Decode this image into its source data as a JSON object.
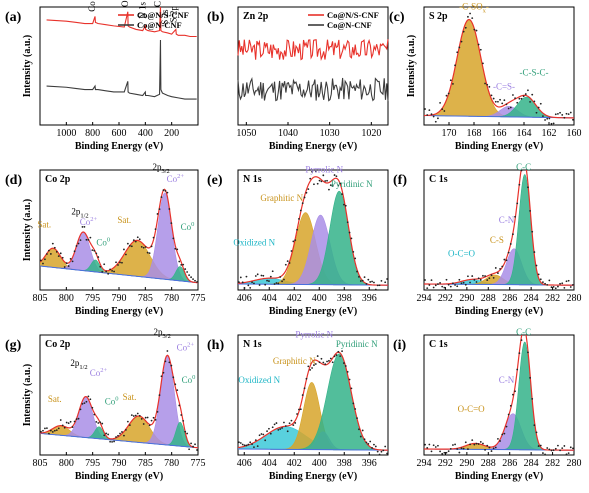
{
  "chart_data": [
    {
      "id": "a",
      "panel_label": "(a)",
      "title": "",
      "type": "line",
      "xrange": [
        1200,
        0
      ],
      "yrange": [
        0,
        1
      ],
      "xticks": [
        1000,
        800,
        600,
        400,
        200
      ],
      "xlabel": "Binding Energy (eV)",
      "ylabel": "Intensity (a.u.)",
      "legend": [
        "Co@N/S-CNF",
        "Co@N-CNF"
      ],
      "legend_position": "top-right",
      "series": [
        {
          "name": "Co@N/S-CNF",
          "color": "#e8322b",
          "x": [
            1150,
            1000,
            930,
            860,
            800,
            782,
            779,
            760,
            700,
            640,
            560,
            533,
            531,
            520,
            470,
            420,
            400,
            398,
            380,
            330,
            292,
            285,
            282,
            270,
            230,
            200,
            168,
            165,
            150,
            100,
            60,
            10
          ],
          "y": [
            0.89,
            0.88,
            0.87,
            0.86,
            0.86,
            0.92,
            0.87,
            0.86,
            0.85,
            0.84,
            0.83,
            0.96,
            0.84,
            0.83,
            0.81,
            0.8,
            0.84,
            0.81,
            0.8,
            0.79,
            0.8,
            1.0,
            0.8,
            0.79,
            0.78,
            0.77,
            0.81,
            0.77,
            0.76,
            0.76,
            0.75,
            0.75
          ]
        },
        {
          "name": "Co@N-CNF",
          "color": "#3c3c3c",
          "x": [
            1150,
            1000,
            930,
            860,
            800,
            782,
            779,
            760,
            700,
            640,
            560,
            533,
            531,
            520,
            470,
            420,
            400,
            398,
            380,
            330,
            292,
            285,
            282,
            270,
            230,
            200,
            150,
            100,
            60,
            10
          ],
          "y": [
            0.33,
            0.32,
            0.31,
            0.3,
            0.3,
            0.33,
            0.3,
            0.3,
            0.29,
            0.28,
            0.28,
            0.37,
            0.28,
            0.27,
            0.26,
            0.25,
            0.28,
            0.25,
            0.25,
            0.24,
            0.26,
            0.72,
            0.3,
            0.27,
            0.25,
            0.24,
            0.23,
            0.22,
            0.22,
            0.22
          ]
        }
      ],
      "annotations": [
        {
          "text": "Co 2p",
          "x": 782,
          "y": 0.96,
          "rot": -90
        },
        {
          "text": "O 1s",
          "x": 532,
          "y": 1.0,
          "rot": -90
        },
        {
          "text": "N 1s",
          "x": 400,
          "y": 0.9,
          "rot": -90
        },
        {
          "text": "C 1s",
          "x": 285,
          "y": 1.0,
          "rot": -90
        },
        {
          "text": "S 2s",
          "x": 228,
          "y": 0.85,
          "rot": -90
        },
        {
          "text": "S 2p",
          "x": 165,
          "y": 0.87,
          "rot": -90
        }
      ]
    },
    {
      "id": "b",
      "panel_label": "(b)",
      "title": "Zn 2p",
      "type": "line",
      "xrange": [
        1052,
        1016
      ],
      "yrange": [
        0,
        1
      ],
      "xticks": [
        1050,
        1040,
        1030,
        1020
      ],
      "xlabel": "Binding Energy (eV)",
      "ylabel": "",
      "legend": [
        "Co@N/S-CNF",
        "Co@N-CNF"
      ],
      "legend_position": "top-right",
      "series": [
        {
          "name": "Co@N/S-CNF",
          "color": "#e8322b",
          "noise": {
            "seed": 3,
            "base": 0.64,
            "amp": 0.09,
            "n": 120
          }
        },
        {
          "name": "Co@N-CNF",
          "color": "#3c3c3c",
          "noise": {
            "seed": 11,
            "base": 0.3,
            "amp": 0.1,
            "n": 120
          }
        }
      ]
    },
    {
      "id": "c",
      "panel_label": "(c)",
      "title": "S 2p",
      "type": "area",
      "xrange": [
        172,
        160
      ],
      "yrange": [
        0,
        1
      ],
      "xticks": [
        170,
        168,
        166,
        164,
        162,
        160
      ],
      "xlabel": "Binding Energy (eV)",
      "ylabel": "Intensity (a.u.)",
      "baseline": [
        0.08,
        0.06
      ],
      "peaks": [
        {
          "label": "-C-SOx-",
          "center": 168.4,
          "width": 0.95,
          "height": 0.82,
          "color": "#d7a42a"
        },
        {
          "label": "-C=S-",
          "center": 165.2,
          "width": 0.7,
          "height": 0.09,
          "color": "#a98ee6"
        },
        {
          "label": "-C-S-C-",
          "center": 163.8,
          "width": 0.75,
          "height": 0.17,
          "color": "#34b38a"
        }
      ],
      "labels": [
        {
          "text": "-C-SOx-",
          "x": 168.0,
          "y": 0.98,
          "color": "#c8921a"
        },
        {
          "text": "-C=S-",
          "x": 165.6,
          "y": 0.3,
          "color": "#9a7ee0"
        },
        {
          "text": "-C-S-C-",
          "x": 163.2,
          "y": 0.42,
          "color": "#2f9e78"
        }
      ],
      "dots": {
        "seed": 5,
        "amp": 0.07,
        "n": 70
      }
    },
    {
      "id": "d",
      "panel_label": "(d)",
      "title": "Co 2p",
      "type": "area",
      "xrange": [
        805,
        775
      ],
      "yrange": [
        0,
        1
      ],
      "xticks": [
        805,
        800,
        795,
        790,
        785,
        780,
        775
      ],
      "xlabel": "Binding Energy (eV)",
      "ylabel": "Intensity (a.u.)",
      "baseline": [
        0.2,
        0.06
      ],
      "peaks": [
        {
          "label": "Sat.",
          "center": 802.5,
          "width": 1.4,
          "height": 0.16,
          "color": "#d7a42a"
        },
        {
          "label": "Co2+",
          "center": 796.8,
          "width": 1.3,
          "height": 0.32,
          "color": "#a98ee6"
        },
        {
          "label": "Co0",
          "center": 794.5,
          "width": 0.8,
          "height": 0.1,
          "color": "#34b38a"
        },
        {
          "label": "Sat.",
          "center": 786.5,
          "width": 2.4,
          "height": 0.3,
          "color": "#d7a42a"
        },
        {
          "label": "Co2+",
          "center": 781.3,
          "width": 1.3,
          "height": 0.72,
          "color": "#a98ee6"
        },
        {
          "label": "Co0",
          "center": 778.4,
          "width": 0.8,
          "height": 0.12,
          "color": "#34b38a"
        }
      ],
      "labels": [
        {
          "text": "Sat.",
          "x": 804.2,
          "y": 0.52,
          "color": "#c8921a"
        },
        {
          "text": "2p1/2",
          "x": 797.4,
          "y": 0.63,
          "color": "#000000"
        },
        {
          "text": "Co2+",
          "x": 795.8,
          "y": 0.54,
          "color": "#9a7ee0"
        },
        {
          "text": "Co0",
          "x": 793.0,
          "y": 0.37,
          "color": "#2f9e78"
        },
        {
          "text": "Sat.",
          "x": 789.0,
          "y": 0.56,
          "color": "#c8921a"
        },
        {
          "text": "2p3/2",
          "x": 782.0,
          "y": 1.0,
          "color": "#000000"
        },
        {
          "text": "Co2+",
          "x": 779.3,
          "y": 0.9,
          "color": "#9a7ee0"
        },
        {
          "text": "Co0",
          "x": 777.0,
          "y": 0.5,
          "color": "#2f9e78"
        }
      ],
      "dots": {
        "seed": 7,
        "amp": 0.05,
        "n": 80
      }
    },
    {
      "id": "e",
      "panel_label": "(e)",
      "title": "N 1s",
      "type": "area",
      "xrange": [
        406.5,
        394.5
      ],
      "yrange": [
        0,
        1
      ],
      "xticks": [
        406,
        404,
        402,
        400,
        398,
        396
      ],
      "xlabel": "Binding Energy (eV)",
      "ylabel": "",
      "baseline": [
        0.05,
        0.04
      ],
      "peaks": [
        {
          "label": "Oxidized N",
          "center": 404.0,
          "width": 1.2,
          "height": 0.05,
          "color": "#3cc9d8"
        },
        {
          "label": "Graphitic N",
          "center": 401.1,
          "width": 0.8,
          "height": 0.6,
          "color": "#d7a42a"
        },
        {
          "label": "Pyrrolic N",
          "center": 399.9,
          "width": 0.75,
          "height": 0.58,
          "color": "#a98ee6"
        },
        {
          "label": "Pyridinic N",
          "center": 398.4,
          "width": 0.75,
          "height": 0.78,
          "color": "#34b38a"
        }
      ],
      "labels": [
        {
          "text": "Oxidized N",
          "x": 405.2,
          "y": 0.37,
          "color": "#1eb6c6"
        },
        {
          "text": "Graphitic N",
          "x": 403.0,
          "y": 0.74,
          "color": "#c8921a"
        },
        {
          "text": "Pyrrolic N",
          "x": 399.6,
          "y": 0.98,
          "color": "#9a7ee0"
        },
        {
          "text": "Pyridinic N",
          "x": 397.4,
          "y": 0.86,
          "color": "#2f9e78"
        }
      ],
      "dots": {
        "seed": 13,
        "amp": 0.06,
        "n": 80
      }
    },
    {
      "id": "f",
      "panel_label": "(f)",
      "title": "C 1s",
      "type": "area",
      "xrange": [
        294,
        280
      ],
      "yrange": [
        0,
        1
      ],
      "xticks": [
        294,
        292,
        290,
        288,
        286,
        284,
        282,
        280
      ],
      "xlabel": "Binding Energy (eV)",
      "ylabel": "",
      "baseline": [
        0.05,
        0.04
      ],
      "peaks": [
        {
          "label": "O-C=O",
          "center": 289.5,
          "width": 1.0,
          "height": 0.04,
          "color": "#3cc9d8"
        },
        {
          "label": "C-S",
          "center": 287.4,
          "width": 0.8,
          "height": 0.08,
          "color": "#d7a42a"
        },
        {
          "label": "C-N",
          "center": 285.6,
          "width": 0.7,
          "height": 0.3,
          "color": "#a98ee6"
        },
        {
          "label": "C-C",
          "center": 284.6,
          "width": 0.55,
          "height": 0.92,
          "color": "#34b38a"
        }
      ],
      "labels": [
        {
          "text": "O-C=O",
          "x": 290.5,
          "y": 0.28,
          "color": "#1eb6c6"
        },
        {
          "text": "C-S",
          "x": 287.2,
          "y": 0.39,
          "color": "#c8921a"
        },
        {
          "text": "C-N",
          "x": 286.3,
          "y": 0.56,
          "color": "#9a7ee0"
        },
        {
          "text": "C-C",
          "x": 284.7,
          "y": 1.0,
          "color": "#2f9e78"
        }
      ],
      "dots": {
        "seed": 17,
        "amp": 0.04,
        "n": 70
      }
    },
    {
      "id": "g",
      "panel_label": "(g)",
      "title": "Co 2p",
      "type": "area",
      "xrange": [
        805,
        775
      ],
      "yrange": [
        0,
        1
      ],
      "xticks": [
        805,
        800,
        795,
        790,
        785,
        780,
        775
      ],
      "xlabel": "Binding Energy (eV)",
      "ylabel": "Intensity (a.u.)",
      "baseline": [
        0.18,
        0.06
      ],
      "peaks": [
        {
          "label": "Sat.",
          "center": 801.0,
          "width": 1.6,
          "height": 0.08,
          "color": "#d7a42a"
        },
        {
          "label": "Co2+",
          "center": 796.3,
          "width": 1.3,
          "height": 0.34,
          "color": "#a98ee6"
        },
        {
          "label": "Co0",
          "center": 793.8,
          "width": 0.8,
          "height": 0.1,
          "color": "#34b38a"
        },
        {
          "label": "Sat.",
          "center": 786.2,
          "width": 2.0,
          "height": 0.22,
          "color": "#d7a42a"
        },
        {
          "label": "Co2+",
          "center": 780.8,
          "width": 1.3,
          "height": 0.74,
          "color": "#a98ee6"
        },
        {
          "label": "Co0",
          "center": 778.4,
          "width": 0.8,
          "height": 0.2,
          "color": "#34b38a"
        }
      ],
      "labels": [
        {
          "text": "Sat.",
          "x": 802.2,
          "y": 0.44,
          "color": "#c8921a"
        },
        {
          "text": "2p1/2",
          "x": 797.6,
          "y": 0.74,
          "color": "#000000"
        },
        {
          "text": "Co2+",
          "x": 793.9,
          "y": 0.66,
          "color": "#9a7ee0"
        },
        {
          "text": "Co0",
          "x": 791.4,
          "y": 0.42,
          "color": "#2f9e78"
        },
        {
          "text": "Sat.",
          "x": 788.0,
          "y": 0.46,
          "color": "#c8921a"
        },
        {
          "text": "2p3/2",
          "x": 781.8,
          "y": 1.0,
          "color": "#000000"
        },
        {
          "text": "Co2+",
          "x": 777.4,
          "y": 0.87,
          "color": "#9a7ee0"
        },
        {
          "text": "Co0",
          "x": 776.8,
          "y": 0.6,
          "color": "#2f9e78"
        }
      ],
      "dots": {
        "seed": 19,
        "amp": 0.05,
        "n": 80
      }
    },
    {
      "id": "h",
      "panel_label": "(h)",
      "title": "N 1s",
      "type": "area",
      "xrange": [
        406.5,
        394.5
      ],
      "yrange": [
        0,
        1
      ],
      "xticks": [
        406,
        404,
        402,
        400,
        398,
        396
      ],
      "xlabel": "Binding Energy (eV)",
      "ylabel": "",
      "baseline": [
        0.05,
        0.04
      ],
      "peaks": [
        {
          "label": "Oxidized N",
          "center": 402.7,
          "width": 1.6,
          "height": 0.19,
          "color": "#3cc9d8"
        },
        {
          "label": "Graphitic N",
          "center": 400.6,
          "width": 0.65,
          "height": 0.56,
          "color": "#d7a42a"
        },
        {
          "label": "Pyrrolic N",
          "center": 399.7,
          "width": 0.5,
          "height": 0.15,
          "color": "#a98ee6"
        },
        {
          "label": "Pyridinic N",
          "center": 398.4,
          "width": 0.95,
          "height": 0.8,
          "color": "#34b38a"
        }
      ],
      "labels": [
        {
          "text": "Oxidized N",
          "x": 404.8,
          "y": 0.6,
          "color": "#1eb6c6"
        },
        {
          "text": "Graphitic N",
          "x": 402.0,
          "y": 0.76,
          "color": "#c8921a"
        },
        {
          "text": "Pyrrolic N",
          "x": 400.4,
          "y": 0.98,
          "color": "#9a7ee0"
        },
        {
          "text": "Pyridinic N",
          "x": 397.0,
          "y": 0.9,
          "color": "#2f9e78"
        }
      ],
      "dots": {
        "seed": 23,
        "amp": 0.05,
        "n": 80
      }
    },
    {
      "id": "i",
      "panel_label": "(i)",
      "title": "C 1s",
      "type": "area",
      "xrange": [
        294,
        280
      ],
      "yrange": [
        0,
        1
      ],
      "xticks": [
        294,
        292,
        290,
        288,
        286,
        284,
        282,
        280
      ],
      "xlabel": "Binding Energy (eV)",
      "ylabel": "",
      "baseline": [
        0.05,
        0.04
      ],
      "peaks": [
        {
          "label": "O-C=O",
          "center": 289.2,
          "width": 0.9,
          "height": 0.05,
          "color": "#d7a42a"
        },
        {
          "label": "C-N",
          "center": 285.7,
          "width": 0.75,
          "height": 0.3,
          "color": "#a98ee6"
        },
        {
          "label": "C-C",
          "center": 284.6,
          "width": 0.55,
          "height": 0.9,
          "color": "#34b38a"
        }
      ],
      "labels": [
        {
          "text": "O-C=O",
          "x": 289.6,
          "y": 0.36,
          "color": "#c8921a"
        },
        {
          "text": "C-N",
          "x": 286.3,
          "y": 0.6,
          "color": "#9a7ee0"
        },
        {
          "text": "C-C",
          "x": 284.7,
          "y": 1.0,
          "color": "#2f9e78"
        }
      ],
      "dots": {
        "seed": 29,
        "amp": 0.04,
        "n": 70
      }
    }
  ]
}
